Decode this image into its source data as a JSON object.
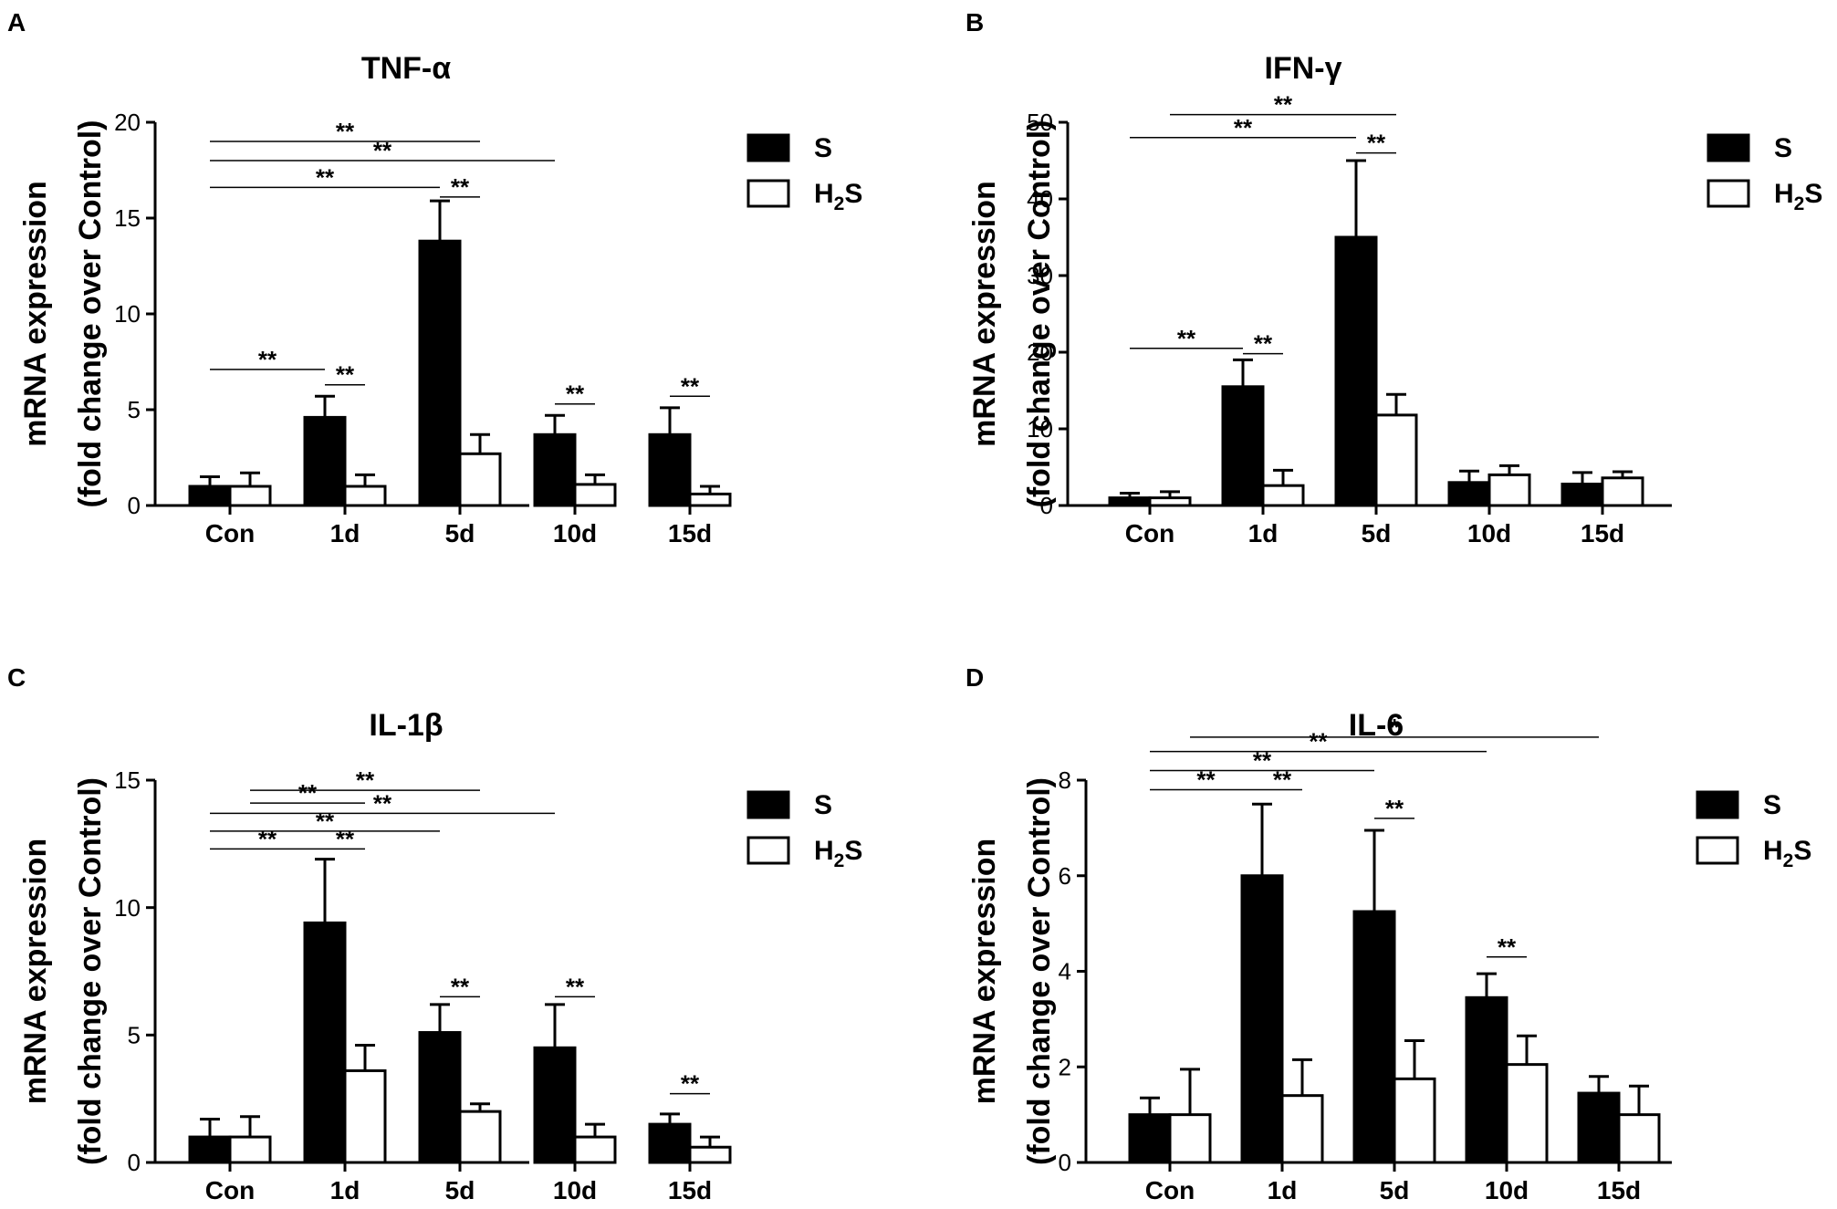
{
  "figure": {
    "legend": {
      "s_label": "S",
      "h2s_label": "H₂S"
    },
    "colors": {
      "s": "#000000",
      "h2s": "#ffffff",
      "stroke": "#000000"
    }
  },
  "chart_data": [
    {
      "panel_label": "A",
      "type": "bar",
      "title": "TNF-α",
      "xlabel": "",
      "ylabel_line1": "mRNA expression",
      "ylabel_line2": "(fold change over Control)",
      "categories": [
        "Con",
        "1d",
        "5d",
        "10d",
        "15d"
      ],
      "ylim": [
        0,
        20
      ],
      "yticks": [
        0,
        5,
        10,
        15,
        20
      ],
      "series": [
        {
          "name": "S",
          "values": [
            1.0,
            4.6,
            13.8,
            3.7,
            3.7
          ],
          "errors": [
            0.5,
            1.1,
            2.1,
            1.0,
            1.4
          ]
        },
        {
          "name": "H₂S",
          "values": [
            1.0,
            1.0,
            2.7,
            1.1,
            0.6
          ],
          "errors": [
            0.7,
            0.6,
            1.0,
            0.5,
            0.4
          ]
        }
      ],
      "significance": [
        {
          "from": "Con.S",
          "to": "5d.H2S",
          "y": 19.0,
          "label": "**"
        },
        {
          "from": "Con.S",
          "to": "10d.S",
          "y": 18.0,
          "label": "**"
        },
        {
          "from": "Con.S",
          "to": "5d.S",
          "y": 16.6,
          "label": "**"
        },
        {
          "from": "5d.S",
          "to": "5d.H2S",
          "y": 16.1,
          "label": "**"
        },
        {
          "from": "Con.S",
          "to": "1d.S",
          "y": 7.1,
          "label": "**"
        },
        {
          "from": "1d.S",
          "to": "1d.H2S",
          "y": 6.3,
          "label": "**"
        },
        {
          "from": "10d.S",
          "to": "10d.H2S",
          "y": 5.3,
          "label": "**"
        },
        {
          "from": "15d.S",
          "to": "15d.H2S",
          "y": 5.7,
          "label": "**"
        }
      ]
    },
    {
      "panel_label": "B",
      "type": "bar",
      "title": "IFN-γ",
      "xlabel": "",
      "ylabel_line1": "mRNA expression",
      "ylabel_line2": "(fold change over Control)",
      "categories": [
        "Con",
        "1d",
        "5d",
        "10d",
        "15d"
      ],
      "ylim": [
        0,
        50
      ],
      "yticks": [
        0,
        10,
        20,
        30,
        40,
        50
      ],
      "series": [
        {
          "name": "S",
          "values": [
            1.0,
            15.5,
            35.0,
            3.0,
            2.8
          ],
          "errors": [
            0.6,
            3.5,
            10.0,
            1.5,
            1.5
          ]
        },
        {
          "name": "H₂S",
          "values": [
            1.0,
            2.6,
            11.8,
            4.0,
            3.6
          ],
          "errors": [
            0.8,
            2.0,
            2.7,
            1.2,
            0.8
          ]
        }
      ],
      "significance": [
        {
          "from": "Con.H2S",
          "to": "5d.H2S",
          "y": 51.0,
          "label": "**"
        },
        {
          "from": "Con.S",
          "to": "5d.S",
          "y": 48.0,
          "label": "**"
        },
        {
          "from": "5d.S",
          "to": "5d.H2S",
          "y": 46.0,
          "label": "**"
        },
        {
          "from": "Con.S",
          "to": "1d.S",
          "y": 20.5,
          "label": "**"
        },
        {
          "from": "1d.S",
          "to": "1d.H2S",
          "y": 19.8,
          "label": "**"
        }
      ]
    },
    {
      "panel_label": "C",
      "type": "bar",
      "title": "IL-1β",
      "xlabel": "",
      "ylabel_line1": "mRNA expression",
      "ylabel_line2": "(fold change over Control)",
      "categories": [
        "Con",
        "1d",
        "5d",
        "10d",
        "15d"
      ],
      "ylim": [
        0,
        15
      ],
      "yticks": [
        0,
        5,
        10,
        15
      ],
      "series": [
        {
          "name": "S",
          "values": [
            1.0,
            9.4,
            5.1,
            4.5,
            1.5
          ],
          "errors": [
            0.7,
            2.5,
            1.1,
            1.7,
            0.4
          ]
        },
        {
          "name": "H₂S",
          "values": [
            1.0,
            3.6,
            2.0,
            1.0,
            0.6
          ],
          "errors": [
            0.8,
            1.0,
            0.3,
            0.5,
            0.4
          ]
        }
      ],
      "significance": [
        {
          "from": "Con.H2S",
          "to": "5d.H2S",
          "y": 14.6,
          "label": "**"
        },
        {
          "from": "Con.H2S",
          "to": "1d.H2S",
          "y": 14.1,
          "label": "**"
        },
        {
          "from": "Con.S",
          "to": "10d.S",
          "y": 13.7,
          "label": "**"
        },
        {
          "from": "Con.S",
          "to": "5d.S",
          "y": 13.0,
          "label": "**"
        },
        {
          "from": "Con.S",
          "to": "1d.S",
          "y": 12.3,
          "label": "**"
        },
        {
          "from": "1d.S",
          "to": "1d.H2S",
          "y": 12.3,
          "label": "**"
        },
        {
          "from": "5d.S",
          "to": "5d.H2S",
          "y": 6.5,
          "label": "**"
        },
        {
          "from": "10d.S",
          "to": "10d.H2S",
          "y": 6.5,
          "label": "**"
        },
        {
          "from": "15d.S",
          "to": "15d.H2S",
          "y": 2.7,
          "label": "**"
        }
      ]
    },
    {
      "panel_label": "D",
      "type": "bar",
      "title": "IL-6",
      "xlabel": "",
      "ylabel_line1": "mRNA expression",
      "ylabel_line2": "(fold change over Control)",
      "categories": [
        "Con",
        "1d",
        "5d",
        "10d",
        "15d"
      ],
      "ylim": [
        0,
        8
      ],
      "yticks": [
        0,
        2,
        4,
        6,
        8
      ],
      "series": [
        {
          "name": "S",
          "values": [
            1.0,
            6.0,
            5.25,
            3.45,
            1.45
          ],
          "errors": [
            0.35,
            1.5,
            1.7,
            0.5,
            0.35
          ]
        },
        {
          "name": "H₂S",
          "values": [
            1.0,
            1.4,
            1.75,
            2.05,
            1.0
          ],
          "errors": [
            0.95,
            0.75,
            0.8,
            0.6,
            0.6
          ]
        }
      ],
      "significance": [
        {
          "from": "Con.H2S",
          "to": "15d.S",
          "y": 8.9,
          "label": "*"
        },
        {
          "from": "Con.S",
          "to": "10d.S",
          "y": 8.6,
          "label": "**"
        },
        {
          "from": "Con.S",
          "to": "5d.S",
          "y": 8.2,
          "label": "**"
        },
        {
          "from": "Con.S",
          "to": "1d.S",
          "y": 7.8,
          "label": "**"
        },
        {
          "from": "1d.S",
          "to": "1d.H2S",
          "y": 7.8,
          "label": "**"
        },
        {
          "from": "5d.S",
          "to": "5d.H2S",
          "y": 7.2,
          "label": "**"
        },
        {
          "from": "10d.S",
          "to": "10d.H2S",
          "y": 4.3,
          "label": "**"
        }
      ]
    }
  ]
}
